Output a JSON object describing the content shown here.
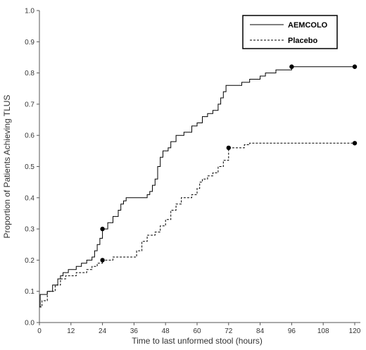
{
  "chart_data": {
    "type": "line",
    "xlabel": "Time to last unformed stool (hours)",
    "ylabel": "Proportion of Patients Achieving TLUS",
    "xlim": [
      0,
      120
    ],
    "ylim": [
      0,
      1.0
    ],
    "x_ticks": [
      0,
      12,
      24,
      36,
      48,
      60,
      72,
      84,
      96,
      108,
      120
    ],
    "y_ticks": [
      0.0,
      0.1,
      0.2,
      0.3,
      0.4,
      0.5,
      0.6,
      0.7,
      0.8,
      0.9,
      1.0
    ],
    "y_tick_labels": [
      "0.0",
      "0.1",
      "0.2",
      "0.3",
      "0.4",
      "0.5",
      "0.6",
      "0.7",
      "0.8",
      "0.9",
      "1.0"
    ],
    "grid": false,
    "legend_position": "top-right",
    "series": [
      {
        "name": "AEMCOLO",
        "line_style": "solid",
        "step": true,
        "points": [
          [
            0,
            0.05
          ],
          [
            0.3,
            0.09
          ],
          [
            2,
            0.09
          ],
          [
            3,
            0.1
          ],
          [
            5,
            0.12
          ],
          [
            7,
            0.14
          ],
          [
            8,
            0.15
          ],
          [
            9,
            0.16
          ],
          [
            11,
            0.17
          ],
          [
            14,
            0.18
          ],
          [
            16,
            0.19
          ],
          [
            18,
            0.2
          ],
          [
            20,
            0.21
          ],
          [
            21,
            0.23
          ],
          [
            22,
            0.25
          ],
          [
            23,
            0.27
          ],
          [
            24,
            0.3
          ],
          [
            26,
            0.32
          ],
          [
            28,
            0.34
          ],
          [
            30,
            0.36
          ],
          [
            31,
            0.38
          ],
          [
            32,
            0.39
          ],
          [
            33,
            0.4
          ],
          [
            40,
            0.4
          ],
          [
            41,
            0.41
          ],
          [
            42,
            0.42
          ],
          [
            43,
            0.44
          ],
          [
            44,
            0.46
          ],
          [
            45,
            0.5
          ],
          [
            46,
            0.53
          ],
          [
            47,
            0.55
          ],
          [
            49,
            0.56
          ],
          [
            50,
            0.58
          ],
          [
            52,
            0.6
          ],
          [
            55,
            0.61
          ],
          [
            58,
            0.63
          ],
          [
            60,
            0.64
          ],
          [
            62,
            0.66
          ],
          [
            64,
            0.67
          ],
          [
            66,
            0.68
          ],
          [
            68,
            0.7
          ],
          [
            69,
            0.72
          ],
          [
            70,
            0.74
          ],
          [
            71,
            0.76
          ],
          [
            73,
            0.76
          ],
          [
            77,
            0.77
          ],
          [
            80,
            0.78
          ],
          [
            84,
            0.79
          ],
          [
            86,
            0.8
          ],
          [
            90,
            0.81
          ],
          [
            96,
            0.82
          ],
          [
            120,
            0.82
          ]
        ],
        "markers": [
          [
            24,
            0.3
          ],
          [
            96,
            0.82
          ],
          [
            120,
            0.82
          ]
        ]
      },
      {
        "name": "Placebo",
        "line_style": "dashed",
        "step": true,
        "points": [
          [
            0,
            0.05
          ],
          [
            1,
            0.07
          ],
          [
            3,
            0.1
          ],
          [
            6,
            0.12
          ],
          [
            8,
            0.14
          ],
          [
            10,
            0.15
          ],
          [
            14,
            0.16
          ],
          [
            18,
            0.17
          ],
          [
            20,
            0.18
          ],
          [
            22,
            0.19
          ],
          [
            24,
            0.2
          ],
          [
            27,
            0.2
          ],
          [
            28,
            0.21
          ],
          [
            36,
            0.21
          ],
          [
            37,
            0.23
          ],
          [
            39,
            0.26
          ],
          [
            41,
            0.28
          ],
          [
            44,
            0.29
          ],
          [
            46,
            0.31
          ],
          [
            48,
            0.33
          ],
          [
            50,
            0.36
          ],
          [
            52,
            0.38
          ],
          [
            54,
            0.4
          ],
          [
            58,
            0.41
          ],
          [
            60,
            0.43
          ],
          [
            61,
            0.45
          ],
          [
            62,
            0.46
          ],
          [
            64,
            0.47
          ],
          [
            66,
            0.48
          ],
          [
            68,
            0.5
          ],
          [
            70,
            0.52
          ],
          [
            72,
            0.56
          ],
          [
            76,
            0.56
          ],
          [
            78,
            0.57
          ],
          [
            80,
            0.575
          ],
          [
            120,
            0.575
          ]
        ],
        "markers": [
          [
            24,
            0.2
          ],
          [
            72,
            0.56
          ],
          [
            120,
            0.575
          ]
        ]
      }
    ]
  }
}
